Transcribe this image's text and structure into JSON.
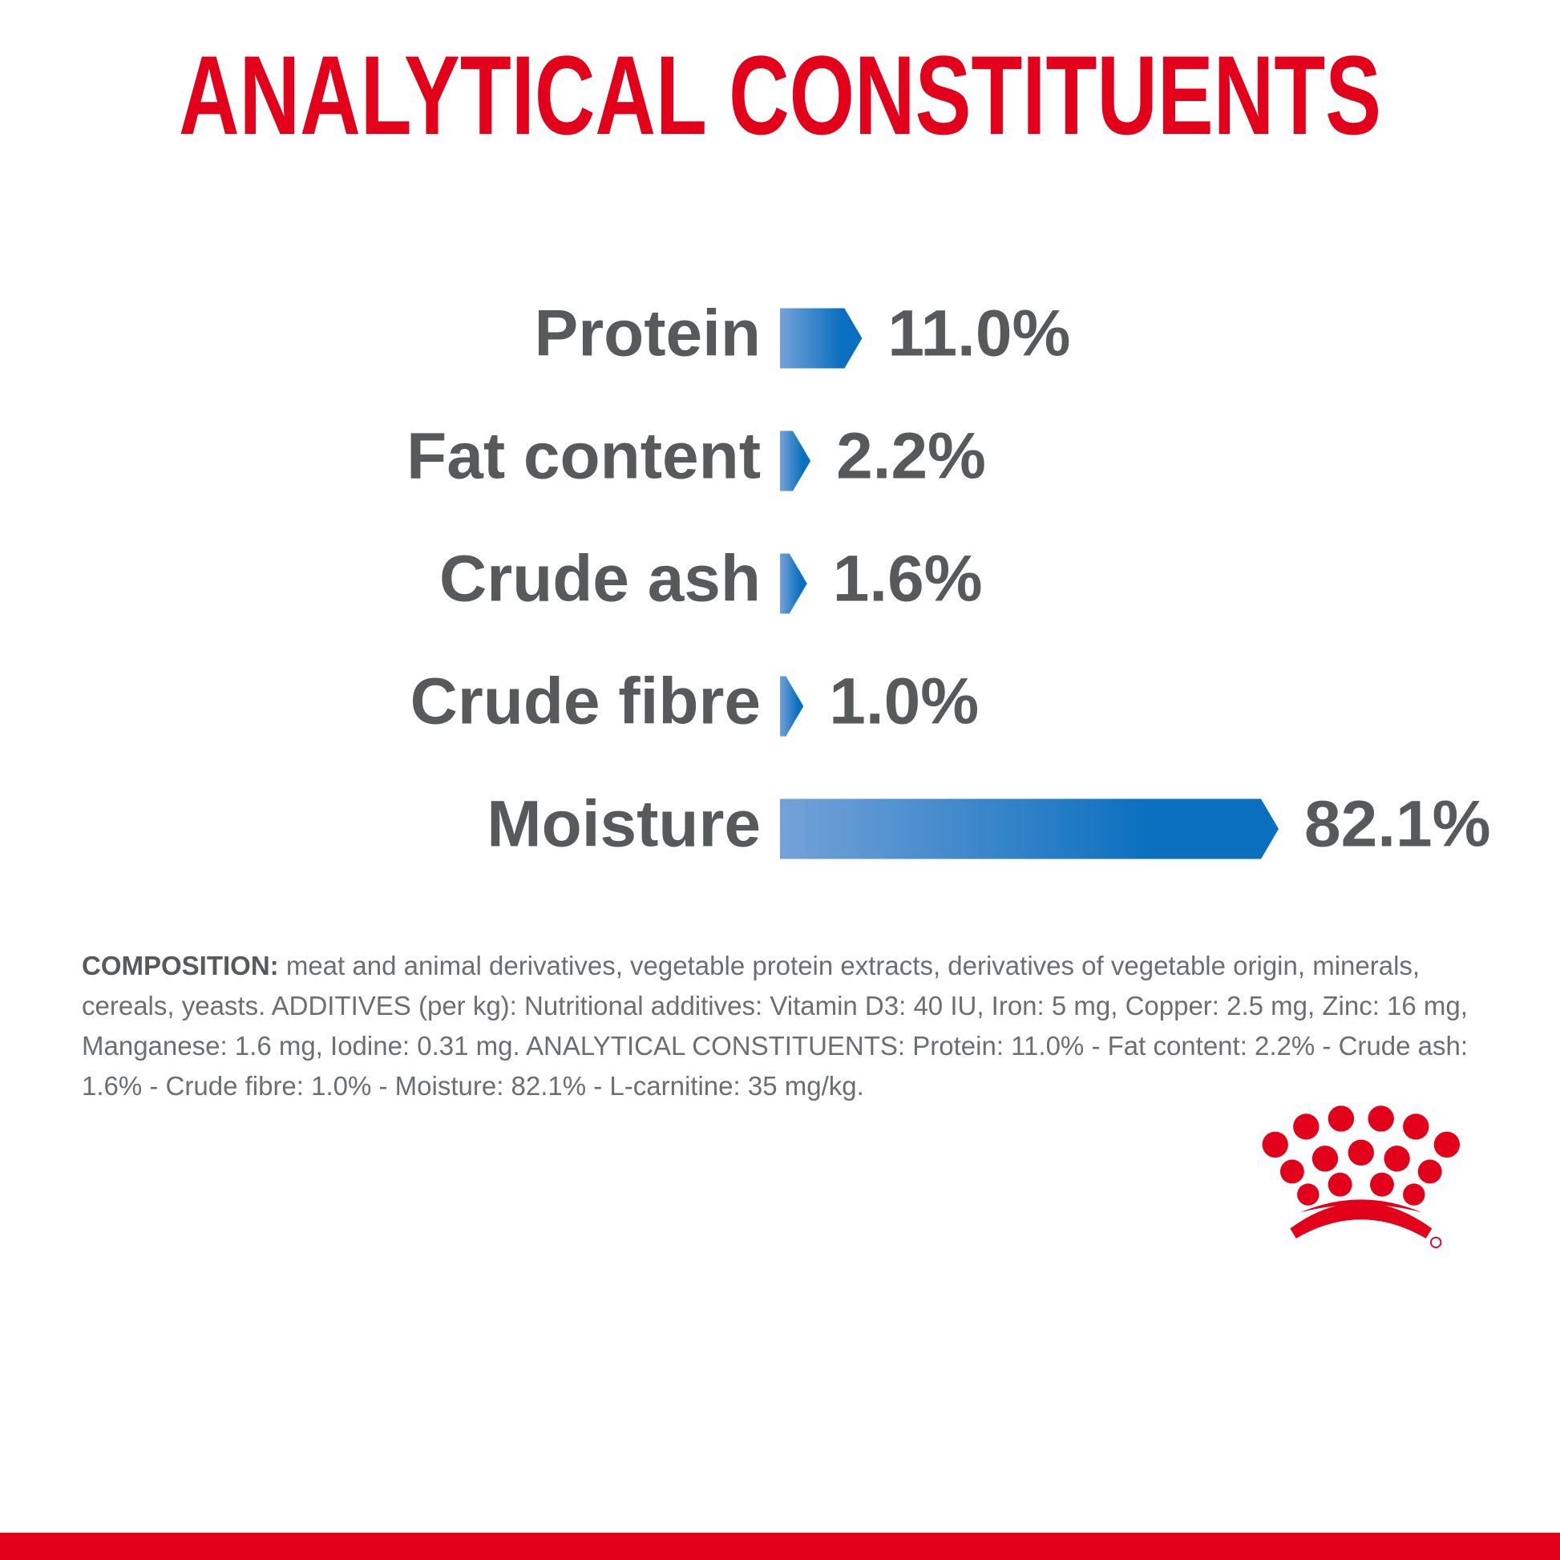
{
  "chart_data": {
    "type": "bar",
    "orientation": "horizontal",
    "title": "ANALYTICAL CONSTITUENTS",
    "categories": [
      "Protein",
      "Fat content",
      "Crude ash",
      "Crude fibre",
      "Moisture"
    ],
    "values": [
      11.0,
      2.2,
      1.6,
      1.0,
      82.1
    ],
    "value_labels": [
      "11.0%",
      "2.2%",
      "1.6%",
      "1.0%",
      "82.1%"
    ],
    "colors": [
      "#74a2d8",
      "#0a6fbf"
    ],
    "title_color": "#e2001a"
  },
  "composition": {
    "label": "COMPOSITION:",
    "text": "meat and animal derivatives, vegetable protein extracts, derivatives of vegetable origin, minerals, cereals, yeasts. ADDITIVES (per kg): Nutritional additives: Vitamin D3: 40 IU, Iron: 5 mg, Copper: 2.5 mg, Zinc: 16 mg, Manganese: 1.6 mg, Iodine: 0.31 mg. ANALYTICAL CONSTITUENTS: Protein: 11.0% - Fat content: 2.2% - Crude ash: 1.6% - Crude fibre: 1.0% - Moisture: 82.1% - L-carnitine: 35 mg/kg."
  }
}
